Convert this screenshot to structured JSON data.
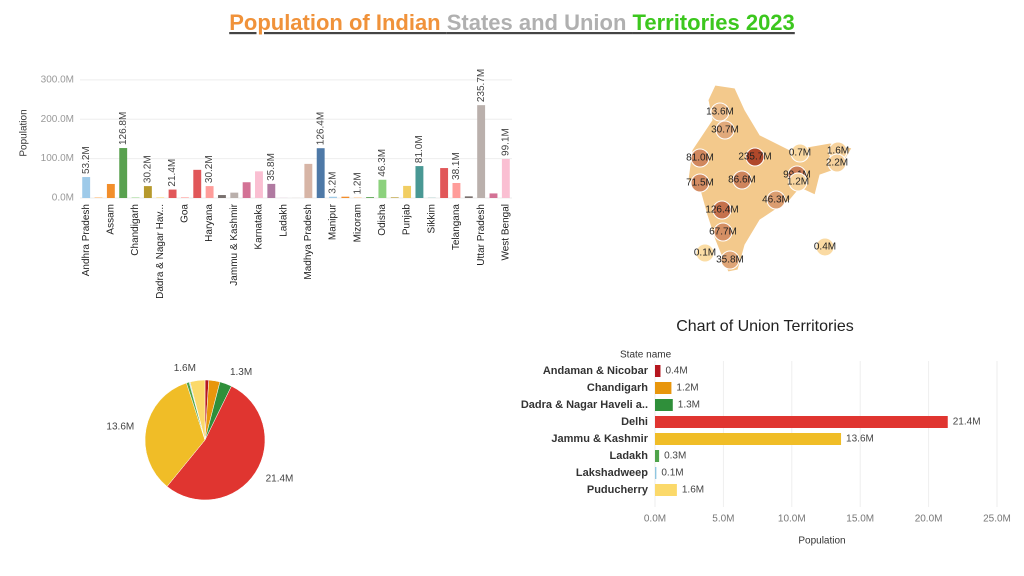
{
  "header": {
    "title_parts": [
      {
        "text": "Population of Indian ",
        "color": "#f0923a"
      },
      {
        "text": "States and Union ",
        "color": "#b0b0b0"
      },
      {
        "text": "Territories 2023",
        "color": "#3cc71e"
      }
    ]
  },
  "chart_data": [
    {
      "type": "bar",
      "y_label": "Population",
      "categories": [
        "Andhra Pradesh",
        null,
        "Assam",
        null,
        "Chandigarh",
        null,
        "Dadra & Nagar Hav...",
        null,
        "Goa",
        null,
        "Haryana",
        null,
        "Jammu & Kashmir",
        null,
        "Karnataka",
        null,
        "Ladakh",
        null,
        "Madhya Pradesh",
        null,
        "Manipur",
        null,
        "Mizoram",
        null,
        "Odisha",
        null,
        "Punjab",
        null,
        "Sikkim",
        null,
        "Telangana",
        null,
        "Uttar Pradesh",
        null,
        "West Bengal"
      ],
      "values": [
        53.2,
        1.6,
        35.6,
        126.8,
        1.2,
        30.2,
        1.3,
        21.4,
        1.6,
        71.5,
        30.2,
        7.5,
        13.6,
        40,
        67.7,
        35.8,
        0.3,
        0.1,
        86.6,
        126.4,
        3.2,
        3.3,
        1.2,
        2.2,
        46.3,
        1.6,
        30.7,
        81.0,
        0.7,
        76,
        38.1,
        4.2,
        235.7,
        11.6,
        99.1
      ],
      "value_labels": [
        "53.2M",
        null,
        null,
        "126.8M",
        null,
        "30.2M",
        null,
        "21.4M",
        null,
        null,
        "30.2M",
        null,
        null,
        null,
        null,
        "35.8M",
        null,
        null,
        null,
        "126.4M",
        "3.2M",
        null,
        "1.2M",
        null,
        "46.3M",
        null,
        null,
        "81.0M",
        null,
        null,
        "38.1M",
        null,
        "235.7M",
        null,
        "99.1M"
      ],
      "colors": [
        "#9ecae9",
        "#ffbe7d",
        "#f28e2b",
        "#59a14f",
        "#8cd17d",
        "#b6992d",
        "#f1ce63",
        "#e15759",
        "#ff9d9a",
        "#e15759",
        "#ff9d9a",
        "#79706e",
        "#bab0ac",
        "#d37295",
        "#fabfd2",
        "#b07aa1",
        "#d4a6c8",
        "#9d7660",
        "#d7b5a6",
        "#4e79a7",
        "#a0cbe8",
        "#f28e2b",
        "#ffbe7d",
        "#59a14f",
        "#8cd17d",
        "#b6992d",
        "#f1ce63",
        "#499894",
        "#86bcb6",
        "#e15759",
        "#ff9d9a",
        "#79706e",
        "#bab0ac",
        "#d37295",
        "#fabfd2"
      ],
      "ylim": [
        0,
        330
      ],
      "yticks": [
        {
          "value": 0,
          "label": "0.0M"
        },
        {
          "value": 100,
          "label": "100.0M"
        },
        {
          "value": 200,
          "label": "200.0M"
        },
        {
          "value": 300,
          "label": "300.0M"
        }
      ],
      "grid": true
    },
    {
      "type": "map",
      "values": [
        13.6,
        30.7,
        81.0,
        235.7,
        0.7,
        1.6,
        2.2,
        99.1,
        1.2,
        71.5,
        86.6,
        46.3,
        126.4,
        67.7,
        0.1,
        35.8,
        0.4
      ],
      "value_labels": [
        "13.6M",
        "30.7M",
        "81.0M",
        "235.7M",
        "0.7M",
        "1.6M",
        "2.2M",
        "99.1M",
        "1.2M",
        "71.5M",
        "86.6M",
        "46.3M",
        "126.4M",
        "67.7M",
        "0.1M",
        "35.8M",
        "0.4M"
      ],
      "colors": [
        "#fde0a8",
        "#b0482a"
      ]
    },
    {
      "type": "pie",
      "values": [
        0.4,
        1.2,
        1.3,
        21.4,
        13.6,
        0.3,
        0.1,
        1.6
      ],
      "value_labels": [
        null,
        null,
        "1.3M",
        "21.4M",
        "13.6M",
        null,
        null,
        "1.6M"
      ],
      "colors": [
        "#b5161e",
        "#e8960c",
        "#2f8f3a",
        "#e03530",
        "#f0bd27",
        "#4fa34a",
        "#8fc6e0",
        "#fbd96a"
      ]
    },
    {
      "type": "hbar",
      "title": "Chart of Union Territories",
      "category_header": "State name",
      "x_label": "Population",
      "categories": [
        "Andaman & Nicobar",
        "Chandigarh",
        "Dadra & Nagar Haveli a..",
        "Delhi",
        "Jammu & Kashmir",
        "Ladakh",
        "Lakshadweep",
        "Puducherry"
      ],
      "values": [
        0.4,
        1.2,
        1.3,
        21.4,
        13.6,
        0.3,
        0.1,
        1.6
      ],
      "value_labels": [
        "0.4M",
        "1.2M",
        "1.3M",
        "21.4M",
        "13.6M",
        "0.3M",
        "0.1M",
        "1.6M"
      ],
      "colors": [
        "#b5161e",
        "#e8960c",
        "#2f8f3a",
        "#e03530",
        "#f0bd27",
        "#4fa34a",
        "#8fc6e0",
        "#fbd96a"
      ],
      "xlim": [
        0,
        25
      ],
      "xticks": [
        {
          "value": 0,
          "label": "0.0M"
        },
        {
          "value": 5,
          "label": "5.0M"
        },
        {
          "value": 10,
          "label": "10.0M"
        },
        {
          "value": 15,
          "label": "15.0M"
        },
        {
          "value": 20,
          "label": "20.0M"
        },
        {
          "value": 25,
          "label": "25.0M"
        }
      ],
      "grid": true
    }
  ]
}
